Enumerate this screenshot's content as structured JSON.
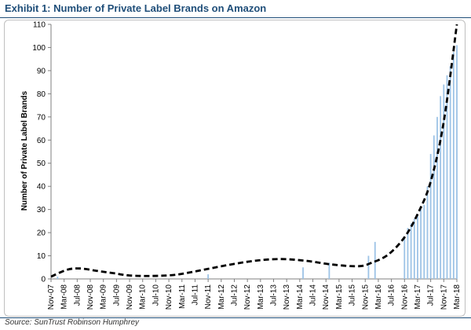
{
  "header": {
    "title": "Exhibit 1: Number of Private Label Brands on Amazon"
  },
  "footer": {
    "source": "Source: SunTrust Robinson Humphrey"
  },
  "chart_data": {
    "type": "bar",
    "title": "Exhibit 1: Number of Private Label Brands on Amazon",
    "xlabel": "",
    "ylabel": "Number of Private Label Brands",
    "ylim": [
      0,
      110
    ],
    "yticks": [
      0,
      10,
      20,
      30,
      40,
      50,
      60,
      70,
      80,
      90,
      100,
      110
    ],
    "xticks": [
      "Nov-07",
      "Mar-08",
      "Jul-08",
      "Nov-08",
      "Mar-09",
      "Jul-09",
      "Nov-09",
      "Mar-10",
      "Jul-10",
      "Nov-10",
      "Mar-11",
      "Jul-11",
      "Nov-11",
      "Mar-12",
      "Jul-12",
      "Nov-12",
      "Mar-13",
      "Jul-13",
      "Nov-13",
      "Mar-14",
      "Jul-14",
      "Nov-14",
      "Mar-15",
      "Jul-15",
      "Nov-15",
      "Mar-16",
      "Jul-16",
      "Nov-16",
      "Mar-17",
      "Jul-17",
      "Nov-17",
      "Mar-18"
    ],
    "grid": false,
    "bar_color": "#9dc3e6",
    "bars": [
      {
        "x": "Jan-08",
        "value": 1
      },
      {
        "x": "Nov-11",
        "value": 2
      },
      {
        "x": "Apr-14",
        "value": 5
      },
      {
        "x": "Dec-14",
        "value": 7
      },
      {
        "x": "Dec-15",
        "value": 10
      },
      {
        "x": "Feb-16",
        "value": 16
      },
      {
        "x": "Nov-16",
        "value": 18
      },
      {
        "x": "Dec-16",
        "value": 22
      },
      {
        "x": "Jan-17",
        "value": 24
      },
      {
        "x": "Feb-17",
        "value": 26
      },
      {
        "x": "Mar-17",
        "value": 28
      },
      {
        "x": "Apr-17",
        "value": 30
      },
      {
        "x": "May-17",
        "value": 32
      },
      {
        "x": "Jun-17",
        "value": 40
      },
      {
        "x": "Jul-17",
        "value": 54
      },
      {
        "x": "Aug-17",
        "value": 62
      },
      {
        "x": "Sep-17",
        "value": 70
      },
      {
        "x": "Oct-17",
        "value": 79
      },
      {
        "x": "Nov-17",
        "value": 84
      },
      {
        "x": "Dec-17",
        "value": 88
      },
      {
        "x": "Jan-18",
        "value": 92
      },
      {
        "x": "Feb-18",
        "value": 98
      },
      {
        "x": "Mar-18",
        "value": 101
      }
    ],
    "trend": {
      "style": "dashed",
      "color": "#000000",
      "points": [
        {
          "x": "Nov-07",
          "y": 1
        },
        {
          "x": "Apr-08",
          "y": 4
        },
        {
          "x": "Aug-08",
          "y": 4.5
        },
        {
          "x": "Jan-09",
          "y": 3.5
        },
        {
          "x": "Jun-09",
          "y": 2.5
        },
        {
          "x": "Nov-09",
          "y": 1.5
        },
        {
          "x": "Jun-10",
          "y": 1.3
        },
        {
          "x": "Jan-11",
          "y": 1.8
        },
        {
          "x": "Sep-11",
          "y": 3.8
        },
        {
          "x": "May-12",
          "y": 6
        },
        {
          "x": "Jan-13",
          "y": 7.8
        },
        {
          "x": "Sep-13",
          "y": 8.6
        },
        {
          "x": "May-14",
          "y": 7.8
        },
        {
          "x": "Jan-15",
          "y": 6.2
        },
        {
          "x": "Sep-15",
          "y": 5.5
        },
        {
          "x": "Jan-16",
          "y": 7
        },
        {
          "x": "Jun-16",
          "y": 10.5
        },
        {
          "x": "Nov-16",
          "y": 18
        },
        {
          "x": "Mar-17",
          "y": 28
        },
        {
          "x": "Jul-17",
          "y": 42
        },
        {
          "x": "Nov-17",
          "y": 68
        },
        {
          "x": "Mar-18",
          "y": 110
        }
      ]
    }
  }
}
